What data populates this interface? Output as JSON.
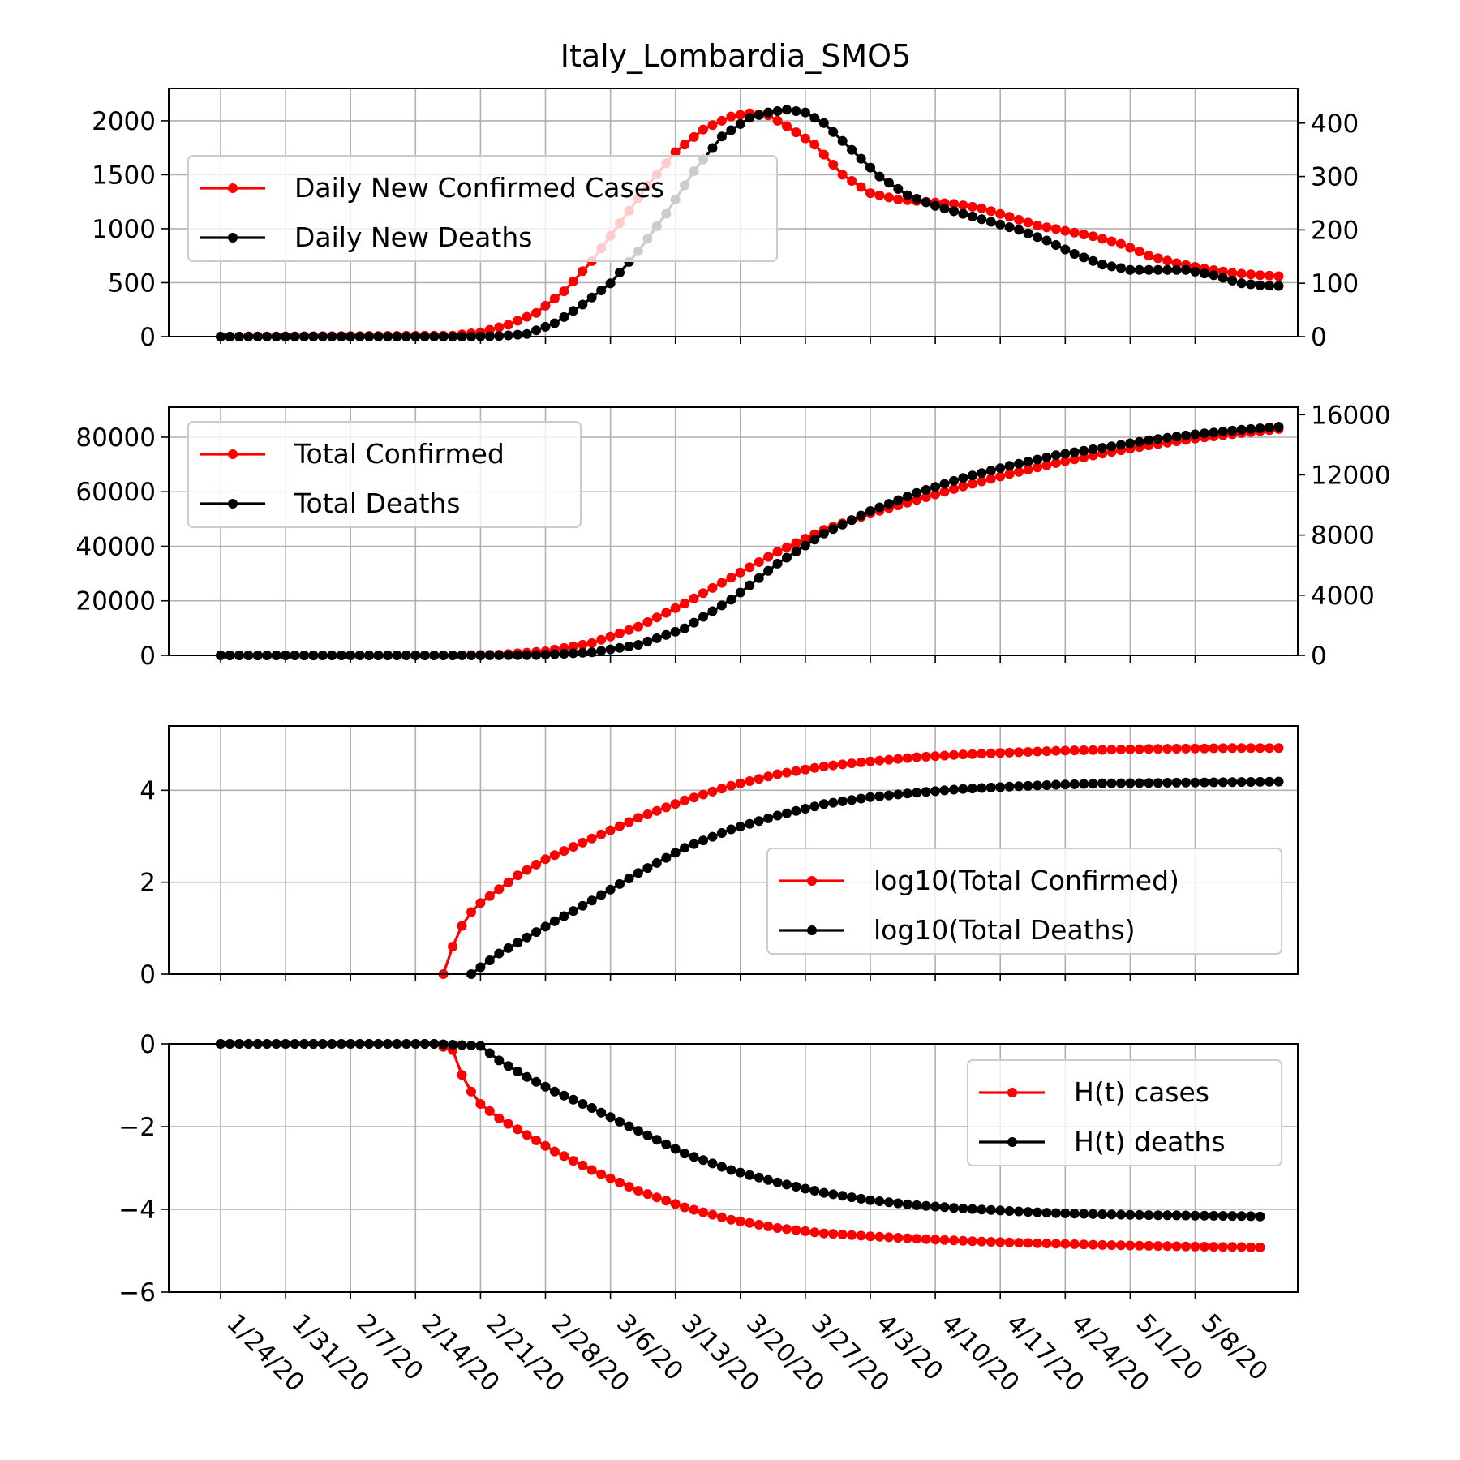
{
  "chart_data": {
    "title": "Italy_Lombardia_SMO5",
    "type": "line",
    "x_dates": [
      "1/24/20",
      "1/25/20",
      "1/26/20",
      "1/27/20",
      "1/28/20",
      "1/29/20",
      "1/30/20",
      "1/31/20",
      "2/1/20",
      "2/2/20",
      "2/3/20",
      "2/4/20",
      "2/5/20",
      "2/6/20",
      "2/7/20",
      "2/8/20",
      "2/9/20",
      "2/10/20",
      "2/11/20",
      "2/12/20",
      "2/13/20",
      "2/14/20",
      "2/15/20",
      "2/16/20",
      "2/17/20",
      "2/18/20",
      "2/19/20",
      "2/20/20",
      "2/21/20",
      "2/22/20",
      "2/23/20",
      "2/24/20",
      "2/25/20",
      "2/26/20",
      "2/27/20",
      "2/28/20",
      "2/29/20",
      "3/1/20",
      "3/2/20",
      "3/3/20",
      "3/4/20",
      "3/5/20",
      "3/6/20",
      "3/7/20",
      "3/8/20",
      "3/9/20",
      "3/10/20",
      "3/11/20",
      "3/12/20",
      "3/13/20",
      "3/14/20",
      "3/15/20",
      "3/16/20",
      "3/17/20",
      "3/18/20",
      "3/19/20",
      "3/20/20",
      "3/21/20",
      "3/22/20",
      "3/23/20",
      "3/24/20",
      "3/25/20",
      "3/26/20",
      "3/27/20",
      "3/28/20",
      "3/29/20",
      "3/30/20",
      "3/31/20",
      "4/1/20",
      "4/2/20",
      "4/3/20",
      "4/4/20",
      "4/5/20",
      "4/6/20",
      "4/7/20",
      "4/8/20",
      "4/9/20",
      "4/10/20",
      "4/11/20",
      "4/12/20",
      "4/13/20",
      "4/14/20",
      "4/15/20",
      "4/16/20",
      "4/17/20",
      "4/18/20",
      "4/19/20",
      "4/20/20",
      "4/21/20",
      "4/22/20",
      "4/23/20",
      "4/24/20",
      "4/25/20",
      "4/26/20",
      "4/27/20",
      "4/28/20",
      "4/29/20",
      "4/30/20",
      "5/1/20",
      "5/2/20",
      "5/3/20",
      "5/4/20",
      "5/5/20",
      "5/6/20",
      "5/7/20",
      "5/8/20",
      "5/9/20",
      "5/10/20",
      "5/11/20",
      "5/12/20",
      "5/13/20",
      "5/14/20",
      "5/15/20"
    ],
    "xtick_labels": [
      "1/24/20",
      "1/31/20",
      "2/7/20",
      "2/14/20",
      "2/21/20",
      "2/28/20",
      "3/6/20",
      "3/13/20",
      "3/20/20",
      "3/27/20",
      "4/3/20",
      "4/10/20",
      "4/17/20",
      "4/24/20",
      "5/1/20",
      "5/8/20"
    ],
    "colors": {
      "cases": "#ff0000",
      "deaths": "#000000",
      "grid": "#b0b0b0"
    },
    "panels": [
      {
        "id": "daily",
        "ylim_left": [
          0,
          2300
        ],
        "ylim_right": [
          0,
          465
        ],
        "yticks_left": [
          "0",
          "500",
          "1000",
          "1500",
          "2000"
        ],
        "yticks_right": [
          "0",
          "100",
          "200",
          "300",
          "400"
        ],
        "legend_loc": "upper-left",
        "series": [
          {
            "name": "Daily New Confirmed Cases",
            "axis": "left",
            "color": "#ff0000",
            "knots": [
              [
                0,
                0
              ],
              [
                25,
                10
              ],
              [
                28,
                40
              ],
              [
                31,
                110
              ],
              [
                34,
                220
              ],
              [
                37,
                420
              ],
              [
                40,
                700
              ],
              [
                43,
                1050
              ],
              [
                46,
                1400
              ],
              [
                49,
                1710
              ],
              [
                52,
                1920
              ],
              [
                55,
                2040
              ],
              [
                57,
                2070
              ],
              [
                59,
                2050
              ],
              [
                61,
                1950
              ],
              [
                64,
                1780
              ],
              [
                67,
                1500
              ],
              [
                70,
                1330
              ],
              [
                73,
                1270
              ],
              [
                76,
                1250
              ],
              [
                79,
                1230
              ],
              [
                82,
                1190
              ],
              [
                85,
                1110
              ],
              [
                88,
                1030
              ],
              [
                91,
                980
              ],
              [
                94,
                930
              ],
              [
                97,
                860
              ],
              [
                100,
                750
              ],
              [
                103,
                680
              ],
              [
                106,
                630
              ],
              [
                109,
                590
              ],
              [
                112,
                570
              ],
              [
                114,
                560
              ]
            ]
          },
          {
            "name": "Daily New Deaths",
            "axis": "left-scaled-right",
            "color": "#000000",
            "knots": [
              [
                0,
                0
              ],
              [
                27,
                0
              ],
              [
                30,
                1
              ],
              [
                33,
                5
              ],
              [
                36,
                25
              ],
              [
                39,
                60
              ],
              [
                42,
                100
              ],
              [
                45,
                160
              ],
              [
                48,
                230
              ],
              [
                51,
                310
              ],
              [
                54,
                375
              ],
              [
                57,
                410
              ],
              [
                59,
                420
              ],
              [
                61,
                425
              ],
              [
                63,
                420
              ],
              [
                65,
                400
              ],
              [
                68,
                350
              ],
              [
                71,
                300
              ],
              [
                74,
                265
              ],
              [
                77,
                245
              ],
              [
                80,
                230
              ],
              [
                83,
                215
              ],
              [
                86,
                200
              ],
              [
                89,
                180
              ],
              [
                92,
                155
              ],
              [
                95,
                135
              ],
              [
                98,
                125
              ],
              [
                101,
                125
              ],
              [
                104,
                125
              ],
              [
                107,
                115
              ],
              [
                110,
                100
              ],
              [
                112,
                96
              ],
              [
                114,
                95
              ]
            ]
          }
        ]
      },
      {
        "id": "totals",
        "ylim_left": [
          0,
          91000
        ],
        "ylim_right": [
          0,
          16500
        ],
        "yticks_left": [
          "0",
          "20000",
          "40000",
          "60000",
          "80000"
        ],
        "yticks_right": [
          "0",
          "4000",
          "8000",
          "12000",
          "16000"
        ],
        "legend_loc": "upper-left",
        "series": [
          {
            "name": "Total Confirmed",
            "axis": "left",
            "color": "#ff0000",
            "knots": [
              [
                0,
                0
              ],
              [
                25,
                0
              ],
              [
                30,
                300
              ],
              [
                35,
                1500
              ],
              [
                40,
                4500
              ],
              [
                45,
                10500
              ],
              [
                50,
                19000
              ],
              [
                55,
                28500
              ],
              [
                60,
                38000
              ],
              [
                65,
                46000
              ],
              [
                70,
                52000
              ],
              [
                75,
                57000
              ],
              [
                80,
                62000
              ],
              [
                85,
                66500
              ],
              [
                90,
                70500
              ],
              [
                95,
                74000
              ],
              [
                100,
                77000
              ],
              [
                105,
                79500
              ],
              [
                110,
                81500
              ],
              [
                114,
                83000
              ]
            ]
          },
          {
            "name": "Total Deaths",
            "axis": "right",
            "color": "#000000",
            "knots": [
              [
                0,
                0
              ],
              [
                28,
                0
              ],
              [
                34,
                20
              ],
              [
                40,
                200
              ],
              [
                45,
                700
              ],
              [
                50,
                1800
              ],
              [
                55,
                3700
              ],
              [
                60,
                6100
              ],
              [
                65,
                8100
              ],
              [
                70,
                9600
              ],
              [
                75,
                10800
              ],
              [
                80,
                11800
              ],
              [
                85,
                12600
              ],
              [
                90,
                13300
              ],
              [
                95,
                13800
              ],
              [
                100,
                14300
              ],
              [
                105,
                14700
              ],
              [
                110,
                15000
              ],
              [
                114,
                15200
              ]
            ]
          }
        ]
      },
      {
        "id": "log",
        "ylim": [
          0,
          5.4
        ],
        "yticks": [
          "0",
          "2",
          "4"
        ],
        "legend_loc": "center-right",
        "series": [
          {
            "name": "log10(Total Confirmed)",
            "color": "#ff0000",
            "start": 24,
            "knots": [
              [
                24,
                0
              ],
              [
                25,
                0.6
              ],
              [
                26,
                1.05
              ],
              [
                27,
                1.35
              ],
              [
                28,
                1.55
              ],
              [
                30,
                1.85
              ],
              [
                32,
                2.15
              ],
              [
                35,
                2.5
              ],
              [
                40,
                2.95
              ],
              [
                45,
                3.4
              ],
              [
                50,
                3.78
              ],
              [
                55,
                4.1
              ],
              [
                60,
                4.35
              ],
              [
                65,
                4.52
              ],
              [
                70,
                4.63
              ],
              [
                75,
                4.72
              ],
              [
                80,
                4.78
              ],
              [
                85,
                4.82
              ],
              [
                90,
                4.86
              ],
              [
                95,
                4.88
              ],
              [
                100,
                4.9
              ],
              [
                105,
                4.91
              ],
              [
                110,
                4.92
              ],
              [
                114,
                4.92
              ]
            ]
          },
          {
            "name": "log10(Total Deaths)",
            "color": "#000000",
            "start": 27,
            "knots": [
              [
                27,
                0
              ],
              [
                28,
                0.15
              ],
              [
                30,
                0.45
              ],
              [
                33,
                0.8
              ],
              [
                36,
                1.15
              ],
              [
                40,
                1.6
              ],
              [
                45,
                2.2
              ],
              [
                50,
                2.75
              ],
              [
                55,
                3.15
              ],
              [
                60,
                3.45
              ],
              [
                65,
                3.7
              ],
              [
                70,
                3.85
              ],
              [
                75,
                3.95
              ],
              [
                80,
                4.03
              ],
              [
                85,
                4.08
              ],
              [
                90,
                4.12
              ],
              [
                95,
                4.15
              ],
              [
                100,
                4.16
              ],
              [
                105,
                4.17
              ],
              [
                110,
                4.18
              ],
              [
                114,
                4.19
              ]
            ]
          }
        ]
      },
      {
        "id": "entropy",
        "ylim": [
          -6,
          0
        ],
        "yticks": [
          "0",
          "−2",
          "−4",
          "−6"
        ],
        "legend_loc": "upper-right",
        "series": [
          {
            "name": "H(t) cases",
            "color": "#ff0000",
            "flat_until": 23,
            "knots": [
              [
                0,
                0
              ],
              [
                23,
                0
              ],
              [
                25,
                -0.15
              ],
              [
                26,
                -0.75
              ],
              [
                27,
                -1.15
              ],
              [
                28,
                -1.45
              ],
              [
                30,
                -1.8
              ],
              [
                33,
                -2.2
              ],
              [
                36,
                -2.6
              ],
              [
                40,
                -3.05
              ],
              [
                45,
                -3.55
              ],
              [
                50,
                -3.95
              ],
              [
                55,
                -4.25
              ],
              [
                60,
                -4.45
              ],
              [
                65,
                -4.58
              ],
              [
                70,
                -4.65
              ],
              [
                75,
                -4.71
              ],
              [
                80,
                -4.76
              ],
              [
                85,
                -4.8
              ],
              [
                90,
                -4.83
              ],
              [
                95,
                -4.86
              ],
              [
                100,
                -4.88
              ],
              [
                105,
                -4.9
              ],
              [
                110,
                -4.91
              ],
              [
                112,
                -4.92
              ]
            ]
          },
          {
            "name": "H(t) deaths",
            "color": "#000000",
            "flat_until": 23,
            "knots": [
              [
                0,
                0
              ],
              [
                23,
                0
              ],
              [
                28,
                -0.05
              ],
              [
                30,
                -0.4
              ],
              [
                33,
                -0.8
              ],
              [
                36,
                -1.15
              ],
              [
                40,
                -1.55
              ],
              [
                45,
                -2.1
              ],
              [
                50,
                -2.65
              ],
              [
                55,
                -3.05
              ],
              [
                60,
                -3.35
              ],
              [
                65,
                -3.6
              ],
              [
                70,
                -3.78
              ],
              [
                75,
                -3.9
              ],
              [
                80,
                -3.98
              ],
              [
                85,
                -4.04
              ],
              [
                90,
                -4.09
              ],
              [
                95,
                -4.12
              ],
              [
                100,
                -4.14
              ],
              [
                105,
                -4.15
              ],
              [
                110,
                -4.16
              ],
              [
                112,
                -4.17
              ]
            ]
          }
        ]
      }
    ]
  }
}
